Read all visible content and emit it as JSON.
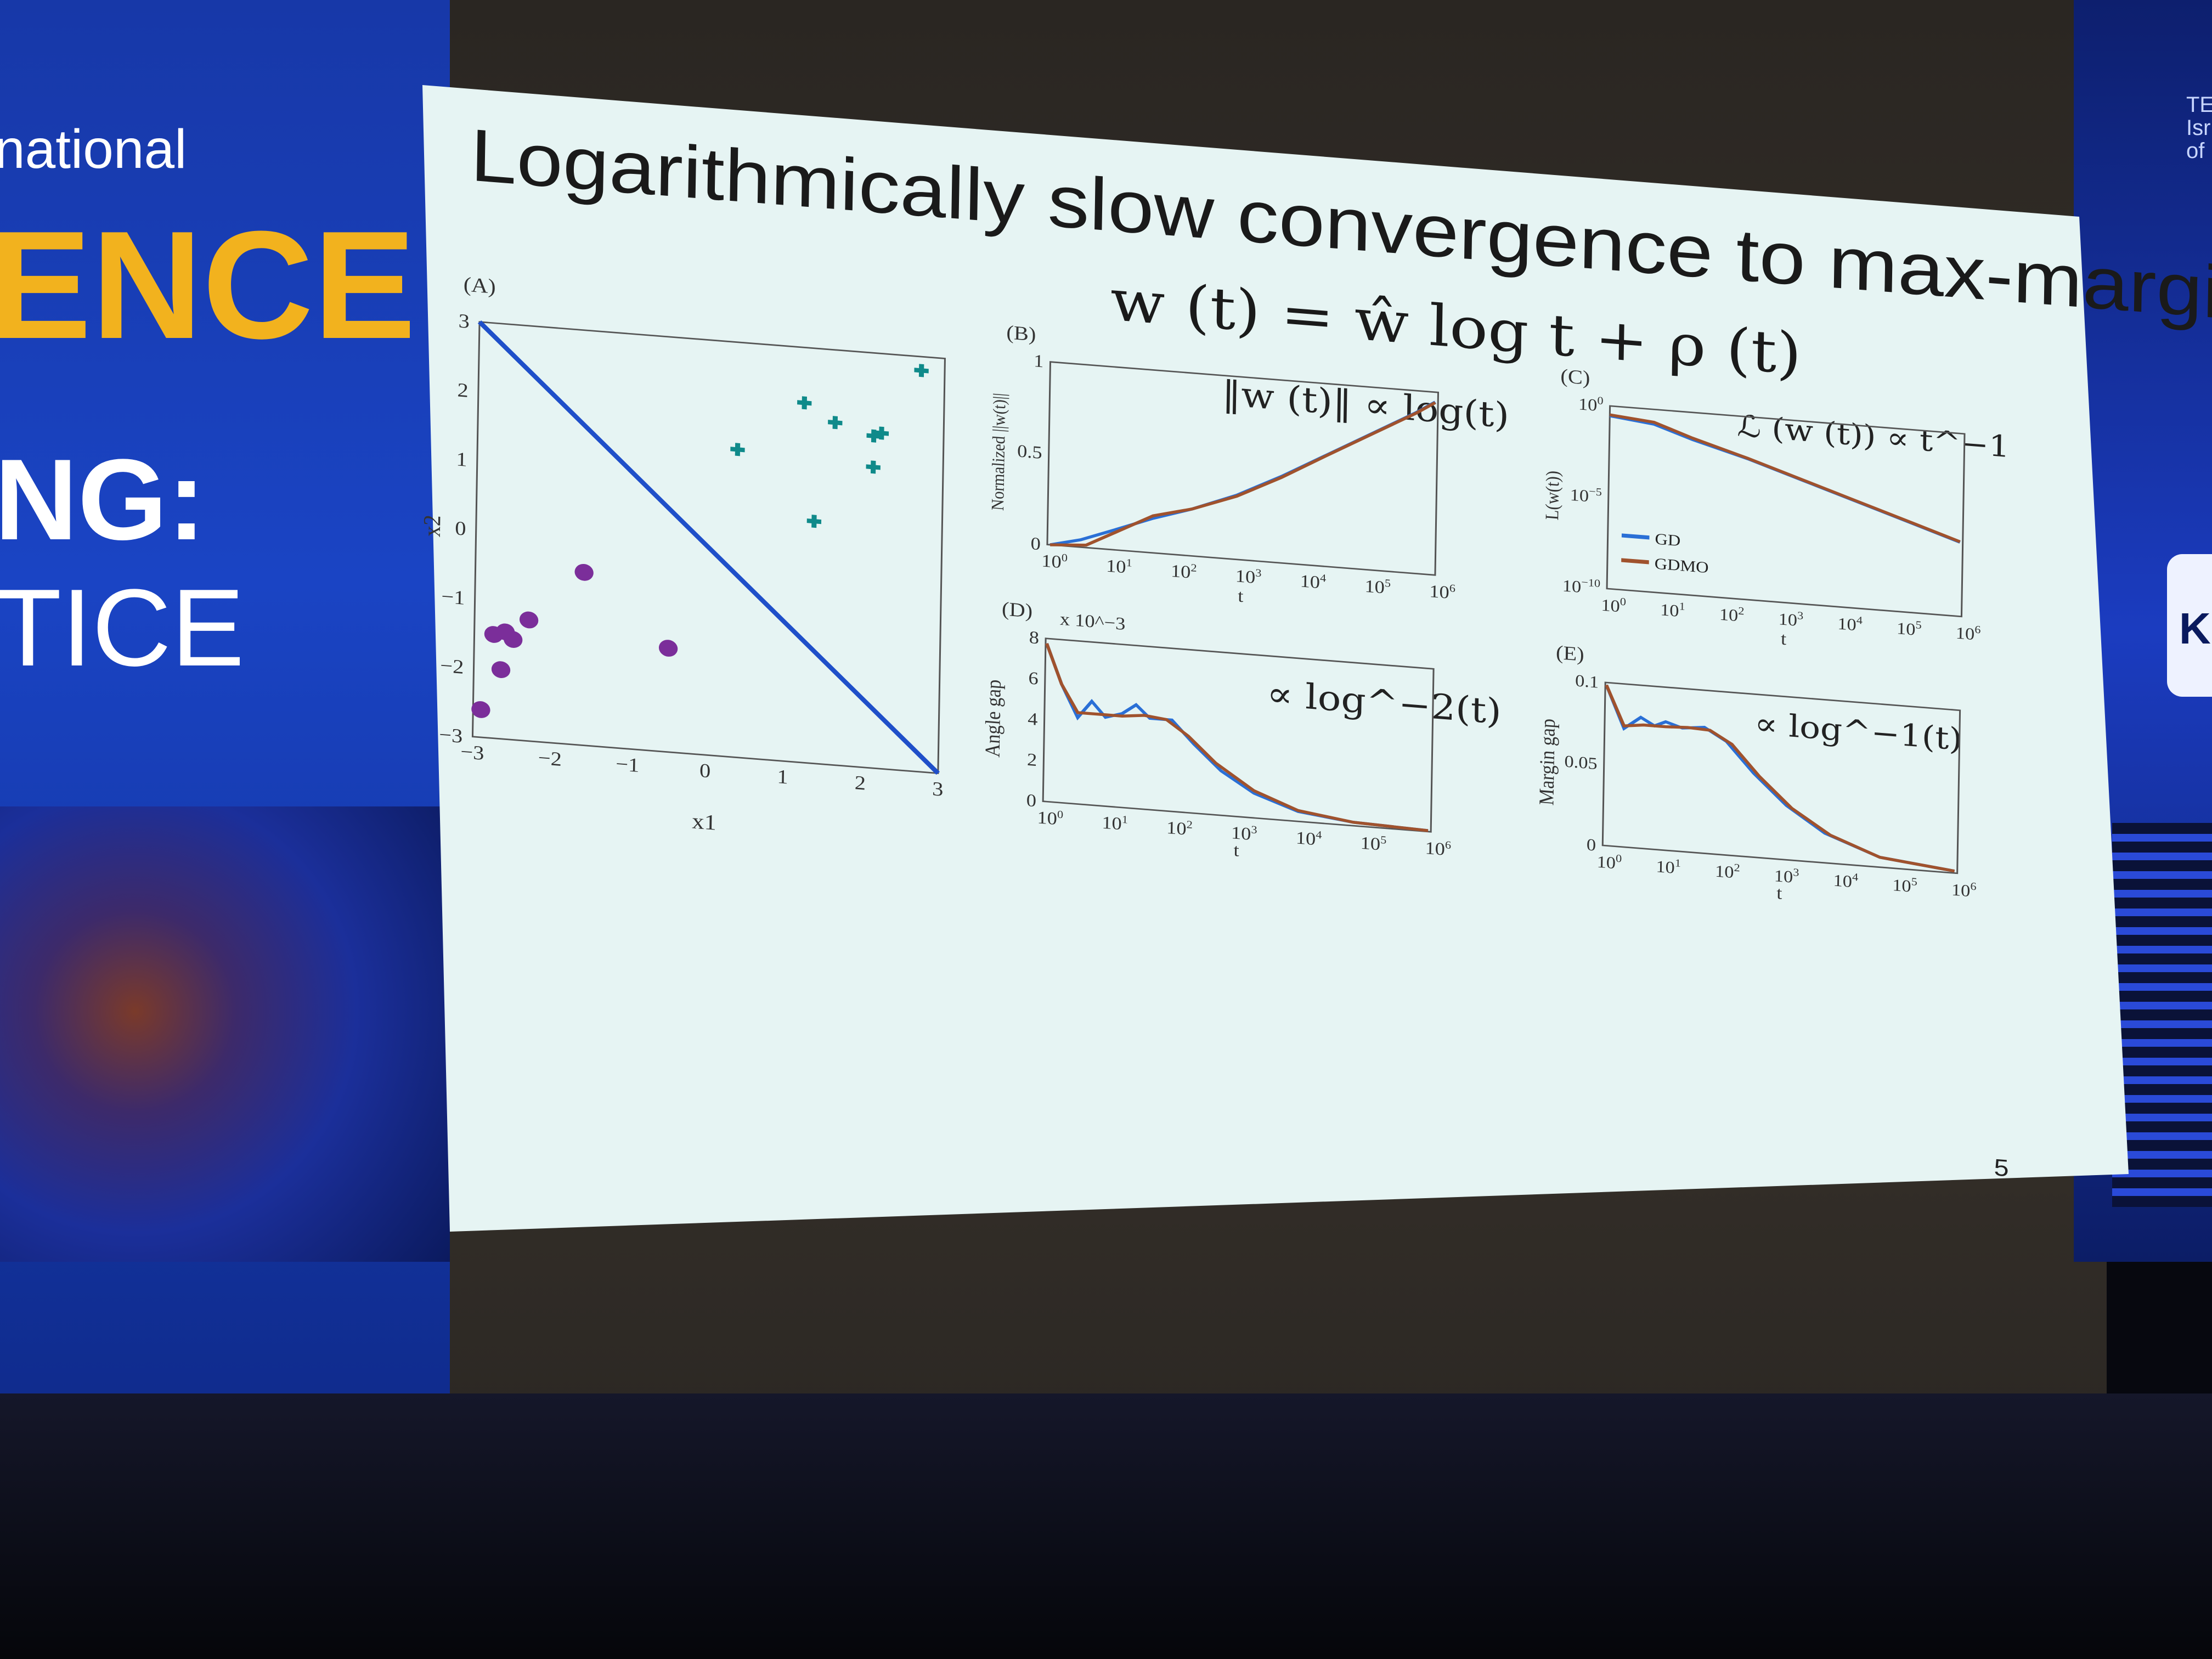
{
  "banner_left": {
    "line1": "national",
    "line2": "ENCE",
    "line3": "NG:",
    "line4": "TICE"
  },
  "banner_right": {
    "logo_text": [
      "TE",
      "Isr",
      "of"
    ],
    "badge_text": "K"
  },
  "slide": {
    "title": "Logarithmically slow convergence to max-margin",
    "equation": "w (t) = ŵ log t + ρ (t)",
    "page_number": "5",
    "panelA": {
      "label": "(A)",
      "xlabel": "x1",
      "ylabel": "x2",
      "xticks": [
        "−3",
        "−2",
        "−1",
        "0",
        "1",
        "2",
        "3"
      ],
      "yticks": [
        "3",
        "2",
        "1",
        "0",
        "−1",
        "−2",
        "−3"
      ],
      "xlim": [
        -3,
        3
      ],
      "ylim": [
        -3,
        3
      ],
      "negative_points": [
        [
          -2.9,
          -2.6
        ],
        [
          -2.75,
          -1.5
        ],
        [
          -2.6,
          -1.45
        ],
        [
          -2.5,
          -1.55
        ],
        [
          -2.65,
          -2.0
        ],
        [
          -2.3,
          -1.25
        ],
        [
          -1.6,
          -0.5
        ],
        [
          -0.5,
          -1.5
        ]
      ],
      "positive_points": [
        [
          0.35,
          1.45
        ],
        [
          1.2,
          2.2
        ],
        [
          1.6,
          1.95
        ],
        [
          2.1,
          1.8
        ],
        [
          2.2,
          1.85
        ],
        [
          2.1,
          1.35
        ],
        [
          1.35,
          0.5
        ],
        [
          2.7,
          2.8
        ]
      ],
      "boundary": [
        [
          -3,
          3
        ],
        [
          3,
          -3
        ]
      ]
    },
    "panelB": {
      "label": "(B)",
      "annotation": "‖w (t)‖ ∝ log(t)",
      "ylabel": "Normalized ||w(t)||",
      "xlabel": "t",
      "yticks": [
        "1",
        "0.5",
        "0"
      ],
      "xticks": [
        "10^0",
        "10^1",
        "10^2",
        "10^3",
        "10^4",
        "10^5",
        "10^6"
      ]
    },
    "panelC": {
      "label": "(C)",
      "annotation": "ℒ (w (t)) ∝ t^−1",
      "ylabel": "L(w(t))",
      "xlabel": "t",
      "yticks": [
        "10^0",
        "10^−5",
        "10^−10"
      ],
      "xticks": [
        "10^0",
        "10^1",
        "10^2",
        "10^3",
        "10^4",
        "10^5",
        "10^6"
      ],
      "legend": [
        "GD",
        "GDMO"
      ]
    },
    "panelD": {
      "label": "(D)",
      "scale_note": "x 10^−3",
      "annotation": "∝ log^−2(t)",
      "ylabel": "Angle gap",
      "xlabel": "t",
      "yticks": [
        "8",
        "6",
        "4",
        "2",
        "0"
      ],
      "xticks": [
        "10^0",
        "10^1",
        "10^2",
        "10^3",
        "10^4",
        "10^5",
        "10^6"
      ]
    },
    "panelE": {
      "label": "(E)",
      "annotation": "∝ log^−1(t)",
      "ylabel": "Margin gap",
      "xlabel": "t",
      "yticks": [
        "0.1",
        "0.05",
        "0"
      ],
      "xticks": [
        "10^0",
        "10^1",
        "10^2",
        "10^3",
        "10^4",
        "10^5",
        "10^6"
      ]
    },
    "series_colors": {
      "GD": "#2a6fd6",
      "GDMO": "#a0522d"
    }
  }
}
